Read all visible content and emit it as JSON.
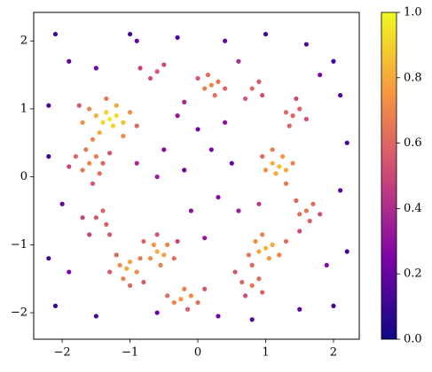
{
  "chart_data": {
    "type": "scatter",
    "x": [
      -1.3,
      -1.2,
      -1.4,
      -1.25,
      -1.35,
      -1.1,
      -1.5,
      -1.2,
      -1.45,
      -1.0,
      -1.6,
      -1.7,
      -1.1,
      -1.35,
      -0.9,
      -1.75,
      -1.55,
      -1.6,
      -1.5,
      -1.7,
      -1.45,
      -1.8,
      -1.65,
      -1.4,
      -1.55,
      -1.9,
      -1.3,
      -1.05,
      -1.0,
      -1.15,
      -0.9,
      -1.1,
      -1.2,
      -0.85,
      -1.3,
      -1.0,
      -0.8,
      -0.6,
      -0.5,
      -0.65,
      -0.7,
      -0.45,
      -0.55,
      -0.35,
      -0.8,
      -0.6,
      -0.3,
      -0.25,
      -0.1,
      -0.35,
      -0.2,
      0.0,
      -0.45,
      -0.15,
      0.1,
      1.0,
      1.1,
      0.9,
      1.05,
      0.85,
      1.2,
      0.95,
      0.75,
      1.3,
      0.8,
      0.8,
      0.9,
      0.65,
      0.95,
      0.55,
      0.7,
      1.2,
      1.1,
      1.3,
      1.15,
      1.25,
      1.0,
      1.4,
      1.1,
      1.3,
      0.95,
      1.6,
      1.7,
      1.5,
      1.65,
      1.45,
      1.8,
      1.5,
      1.4,
      1.5,
      1.3,
      1.6,
      1.35,
      1.45,
      0.2,
      0.1,
      0.3,
      0.15,
      0.25,
      0.4,
      0.0,
      0.8,
      0.9,
      0.7,
      0.95,
      -0.6,
      -0.7,
      -0.5,
      -0.85,
      -1.4,
      -1.5,
      -1.35,
      -1.6,
      -1.3,
      -1.7,
      -2.2,
      -2.1,
      -1.9,
      -1.5,
      -1.0,
      -0.3,
      0.4,
      1.0,
      1.6,
      2.0,
      2.1,
      2.2,
      2.1,
      2.2,
      2.0,
      1.5,
      0.8,
      0.3,
      -0.6,
      -1.5,
      -2.1,
      -2.2,
      -2.0,
      -2.2,
      0.2,
      -0.2,
      0.3,
      -0.1,
      0.4,
      -0.5,
      0.1,
      0.6,
      0.0,
      -0.3,
      0.5,
      1.8,
      -1.9,
      1.9,
      -0.9,
      0.6,
      -0.2,
      -0.9,
      0.9,
      -0.6
    ],
    "y": [
      0.85,
      0.9,
      0.8,
      0.75,
      0.95,
      0.8,
      0.9,
      1.05,
      0.65,
      0.95,
      1.0,
      0.8,
      0.6,
      1.15,
      0.75,
      1.05,
      0.55,
      0.2,
      0.3,
      0.1,
      0.05,
      0.3,
      0.4,
      0.2,
      -0.1,
      0.15,
      0.35,
      -1.35,
      -1.25,
      -1.3,
      -1.4,
      -1.5,
      -1.15,
      -1.2,
      -1.4,
      -1.6,
      -1.55,
      -1.1,
      -1.15,
      -1.0,
      -1.2,
      -1.0,
      -1.3,
      -1.2,
      -0.95,
      -0.85,
      -0.95,
      -1.8,
      -1.75,
      -1.85,
      -1.65,
      -1.85,
      -1.75,
      -1.95,
      -1.65,
      -1.05,
      -1.0,
      -1.1,
      -1.2,
      -0.95,
      -1.15,
      -0.85,
      -1.15,
      -0.95,
      -1.3,
      -1.6,
      -1.5,
      -1.55,
      -1.7,
      -1.4,
      -1.75,
      0.15,
      0.2,
      0.1,
      0.05,
      0.3,
      0.1,
      0.2,
      0.4,
      -0.1,
      0.3,
      -0.5,
      -0.4,
      -0.55,
      -0.65,
      -0.35,
      -0.55,
      -0.8,
      0.9,
      1.0,
      0.95,
      0.85,
      0.75,
      1.15,
      1.35,
      1.3,
      1.4,
      1.5,
      1.2,
      1.3,
      1.45,
      1.3,
      1.4,
      1.15,
      1.2,
      1.55,
      1.45,
      1.65,
      1.6,
      -0.5,
      -0.6,
      -0.7,
      -0.85,
      -0.85,
      -0.6,
      1.05,
      2.1,
      1.7,
      1.6,
      2.1,
      2.05,
      2.0,
      2.1,
      1.95,
      1.7,
      1.2,
      0.5,
      -0.2,
      -1.1,
      -1.9,
      -1.95,
      -2.1,
      -2.05,
      -2.0,
      -2.05,
      -1.9,
      -1.2,
      -0.4,
      0.3,
      0.4,
      0.1,
      -0.3,
      -0.5,
      0.8,
      0.4,
      -0.9,
      -0.5,
      0.7,
      0.9,
      0.2,
      1.5,
      -1.4,
      -1.3,
      2.0,
      1.7,
      1.1,
      0.2,
      -0.4,
      0.0
    ],
    "values": [
      0.97,
      0.93,
      0.92,
      0.9,
      0.9,
      0.85,
      0.82,
      0.8,
      0.8,
      0.72,
      0.7,
      0.72,
      0.72,
      0.65,
      0.6,
      0.55,
      0.7,
      0.7,
      0.68,
      0.65,
      0.62,
      0.6,
      0.66,
      0.6,
      0.55,
      0.5,
      0.55,
      0.8,
      0.78,
      0.72,
      0.72,
      0.68,
      0.62,
      0.65,
      0.55,
      0.6,
      0.55,
      0.8,
      0.78,
      0.75,
      0.72,
      0.7,
      0.68,
      0.62,
      0.6,
      0.55,
      0.5,
      0.75,
      0.72,
      0.7,
      0.68,
      0.62,
      0.62,
      0.58,
      0.55,
      0.82,
      0.8,
      0.78,
      0.75,
      0.72,
      0.7,
      0.68,
      0.65,
      0.62,
      0.6,
      0.65,
      0.62,
      0.6,
      0.58,
      0.55,
      0.52,
      0.85,
      0.82,
      0.8,
      0.8,
      0.75,
      0.72,
      0.7,
      0.68,
      0.65,
      0.62,
      0.65,
      0.62,
      0.62,
      0.58,
      0.6,
      0.52,
      0.5,
      0.6,
      0.58,
      0.6,
      0.52,
      0.58,
      0.5,
      0.7,
      0.68,
      0.65,
      0.62,
      0.62,
      0.58,
      0.55,
      0.6,
      0.56,
      0.55,
      0.52,
      0.55,
      0.52,
      0.5,
      0.48,
      0.6,
      0.55,
      0.58,
      0.5,
      0.55,
      0.48,
      0.15,
      0.1,
      0.18,
      0.22,
      0.12,
      0.15,
      0.18,
      0.12,
      0.15,
      0.12,
      0.15,
      0.12,
      0.18,
      0.12,
      0.1,
      0.18,
      0.15,
      0.22,
      0.2,
      0.12,
      0.1,
      0.12,
      0.2,
      0.1,
      0.25,
      0.2,
      0.28,
      0.3,
      0.3,
      0.28,
      0.32,
      0.35,
      0.22,
      0.32,
      0.2,
      0.25,
      0.25,
      0.28,
      0.2,
      0.4,
      0.38,
      0.38,
      0.45,
      0.35
    ],
    "xlim": [
      -2.42,
      2.38
    ],
    "ylim": [
      -2.39,
      2.42
    ],
    "xticks": [
      {
        "value": -2,
        "label": "−2"
      },
      {
        "value": -1,
        "label": "−1"
      },
      0,
      1,
      2
    ],
    "yticks": [
      {
        "value": -2,
        "label": "−2"
      },
      {
        "value": -1,
        "label": "−1"
      },
      0,
      1,
      2
    ],
    "colormap": "plasma",
    "clim": [
      0,
      1
    ],
    "cticks": [
      {
        "value": 0,
        "label": "0.0"
      },
      {
        "value": 0.2,
        "label": "0.2"
      },
      {
        "value": 0.4,
        "label": "0.4"
      },
      {
        "value": 0.6,
        "label": "0.6"
      },
      {
        "value": 0.8,
        "label": "0.8"
      },
      {
        "value": 1,
        "label": "1.0"
      }
    ]
  }
}
